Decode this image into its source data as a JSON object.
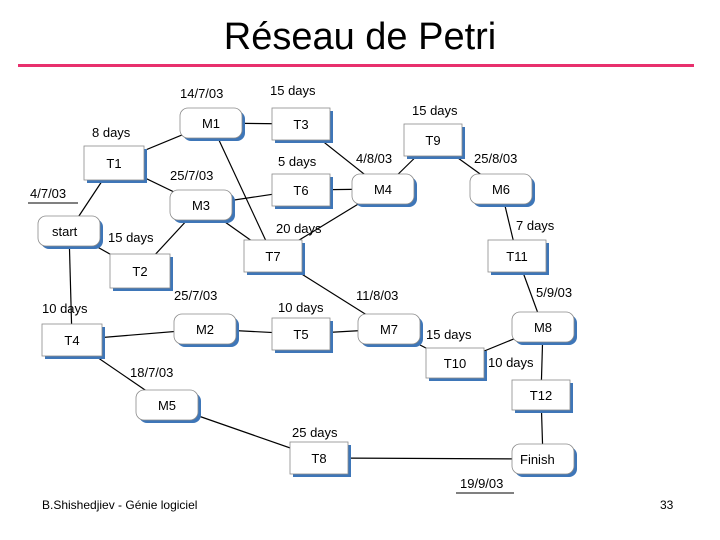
{
  "title": "Réseau de Petri",
  "footer": "B.Shishedjiev - Génie logiciel",
  "page_number": "33",
  "nodes": {
    "start": {
      "label": "start",
      "kind": "milestone"
    },
    "M1": {
      "label": "M1",
      "kind": "milestone"
    },
    "M2": {
      "label": "M2",
      "kind": "milestone"
    },
    "M3": {
      "label": "M3",
      "kind": "milestone"
    },
    "M4": {
      "label": "M4",
      "kind": "milestone"
    },
    "M5": {
      "label": "M5",
      "kind": "milestone"
    },
    "M6": {
      "label": "M6",
      "kind": "milestone"
    },
    "M7": {
      "label": "M7",
      "kind": "milestone"
    },
    "M8": {
      "label": "M8",
      "kind": "milestone"
    },
    "Finish": {
      "label": "Finish",
      "kind": "milestone"
    },
    "T1": {
      "label": "T1",
      "kind": "task"
    },
    "T2": {
      "label": "T2",
      "kind": "task"
    },
    "T3": {
      "label": "T3",
      "kind": "task"
    },
    "T4": {
      "label": "T4",
      "kind": "task"
    },
    "T5": {
      "label": "T5",
      "kind": "task"
    },
    "T6": {
      "label": "T6",
      "kind": "task"
    },
    "T7": {
      "label": "T7",
      "kind": "task"
    },
    "T8": {
      "label": "T8",
      "kind": "task"
    },
    "T9": {
      "label": "T9",
      "kind": "task"
    },
    "T10": {
      "label": "T10",
      "kind": "task"
    },
    "T11": {
      "label": "T11",
      "kind": "task"
    },
    "T12": {
      "label": "T12",
      "kind": "task"
    }
  },
  "edges": [
    [
      "start",
      "T1"
    ],
    [
      "start",
      "T2"
    ],
    [
      "start",
      "T4"
    ],
    [
      "T1",
      "M1"
    ],
    [
      "T1",
      "M3"
    ],
    [
      "T2",
      "M3"
    ],
    [
      "M1",
      "T3"
    ],
    [
      "M1",
      "T7"
    ],
    [
      "M3",
      "T6"
    ],
    [
      "M3",
      "T7"
    ],
    [
      "T6",
      "M4"
    ],
    [
      "T3",
      "M4"
    ],
    [
      "M4",
      "T9"
    ],
    [
      "T9",
      "M6"
    ],
    [
      "M6",
      "T11"
    ],
    [
      "M4",
      "T7"
    ],
    [
      "T11",
      "M8"
    ],
    [
      "T7",
      "M7"
    ],
    [
      "T4",
      "M2"
    ],
    [
      "T4",
      "M5"
    ],
    [
      "M2",
      "T5"
    ],
    [
      "T5",
      "M7"
    ],
    [
      "M7",
      "T10"
    ],
    [
      "M8",
      "T10"
    ],
    [
      "M8",
      "T12"
    ],
    [
      "T12",
      "Finish"
    ],
    [
      "M5",
      "T8"
    ],
    [
      "T8",
      "Finish"
    ]
  ],
  "annotations": {
    "start_date": "4/7/03",
    "m1_date": "14/7/03",
    "m3_date": "25/7/03",
    "m2_date": "25/7/03",
    "m5_date": "18/7/03",
    "m4_date": "4/8/03",
    "m6_date": "25/8/03",
    "m7_date": "11/8/03",
    "m8_date": "5/9/03",
    "finish_date": "19/9/03",
    "t1_duration": "8 days",
    "t2_duration": "15 days",
    "t3_duration": "15 days",
    "t4_duration": "10 days",
    "t5_duration": "10 days",
    "t6_duration": "5 days",
    "t7_duration": "20 days",
    "t8_duration": "25 days",
    "t9_duration": "15 days",
    "t10_duration_a": "15 days",
    "t10_duration_b": "10 days",
    "t11_duration": "7 days"
  }
}
